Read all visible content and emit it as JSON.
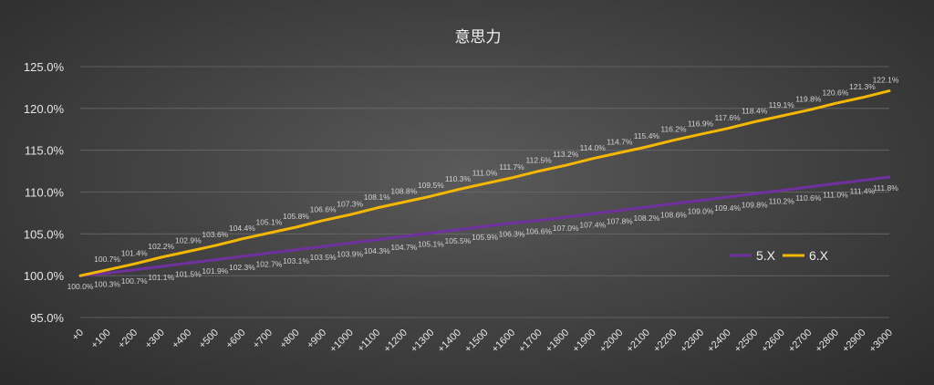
{
  "chart_data": {
    "type": "line",
    "title": "意思力",
    "xlabel": "",
    "ylabel": "",
    "ylim": [
      95,
      125
    ],
    "yticks": [
      "95.0%",
      "100.0%",
      "105.0%",
      "110.0%",
      "115.0%",
      "120.0%",
      "125.0%"
    ],
    "ytick_values": [
      95,
      100,
      105,
      110,
      115,
      120,
      125
    ],
    "categories": [
      "+0",
      "+100",
      "+200",
      "+300",
      "+400",
      "+500",
      "+600",
      "+700",
      "+800",
      "+900",
      "+1000",
      "+1100",
      "+1200",
      "+1300",
      "+1400",
      "+1500",
      "+1600",
      "+1700",
      "+1800",
      "+1900",
      "+2000",
      "+2100",
      "+2200",
      "+2300",
      "+2400",
      "+2500",
      "+2600",
      "+2700",
      "+2800",
      "+2900",
      "+3000"
    ],
    "legend_position": "right",
    "grid": true,
    "series": [
      {
        "name": "5.X",
        "color": "#7030a0",
        "values": [
          100.0,
          100.3,
          100.7,
          101.1,
          101.5,
          101.9,
          102.3,
          102.7,
          103.1,
          103.5,
          103.9,
          104.3,
          104.7,
          105.1,
          105.5,
          105.9,
          106.3,
          106.6,
          107.0,
          107.4,
          107.8,
          108.2,
          108.6,
          109.0,
          109.4,
          109.8,
          110.2,
          110.6,
          111.0,
          111.4,
          111.8
        ],
        "labels": [
          "100.0%",
          "100.3%",
          "100.7%",
          "101.1%",
          "101.5%",
          "101.9%",
          "102.3%",
          "102.7%",
          "103.1%",
          "103.5%",
          "103.9%",
          "104.3%",
          "104.7%",
          "105.1%",
          "105.5%",
          "105.9%",
          "106.3%",
          "106.6%",
          "107.0%",
          "107.4%",
          "107.8%",
          "108.2%",
          "108.6%",
          "109.0%",
          "109.4%",
          "109.8%",
          "110.2%",
          "110.6%",
          "111.0%",
          "111.4%",
          "111.8%"
        ]
      },
      {
        "name": "6.X",
        "color": "#f5b800",
        "values": [
          100.0,
          100.7,
          101.4,
          102.2,
          102.9,
          103.6,
          104.4,
          105.1,
          105.8,
          106.6,
          107.3,
          108.1,
          108.8,
          109.5,
          110.3,
          111.0,
          111.7,
          112.5,
          113.2,
          114.0,
          114.7,
          115.4,
          116.2,
          116.9,
          117.6,
          118.4,
          119.1,
          119.8,
          120.6,
          121.3,
          122.1
        ],
        "labels": [
          "",
          "100.7%",
          "101.4%",
          "102.2%",
          "102.9%",
          "103.6%",
          "104.4%",
          "105.1%",
          "105.8%",
          "106.6%",
          "107.3%",
          "108.1%",
          "108.8%",
          "109.5%",
          "110.3%",
          "111.0%",
          "111.7%",
          "112.5%",
          "113.2%",
          "114.0%",
          "114.7%",
          "115.4%",
          "116.2%",
          "116.9%",
          "117.6%",
          "118.4%",
          "119.1%",
          "119.8%",
          "120.6%",
          "121.3%",
          "122.1%"
        ]
      }
    ]
  }
}
